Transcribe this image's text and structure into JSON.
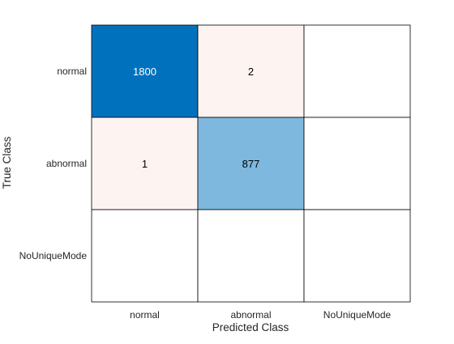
{
  "chart_data": {
    "type": "heatmap",
    "subtype": "confusion-matrix",
    "xlabel": "Predicted Class",
    "ylabel": "True Class",
    "classes": [
      "normal",
      "abnormal",
      "NoUniqueMode"
    ],
    "matrix": [
      [
        1800,
        2,
        null
      ],
      [
        1,
        877,
        null
      ],
      [
        null,
        null,
        null
      ]
    ],
    "colors": {
      "diagonal_strong": "#0072bd",
      "diagonal_medium": "#7eb8de",
      "off_diagonal": "#fdf4f2",
      "empty": "#ffffff",
      "grid": "#000000",
      "text_on_dark": "#ffffff",
      "text_on_light": "#000000"
    }
  }
}
